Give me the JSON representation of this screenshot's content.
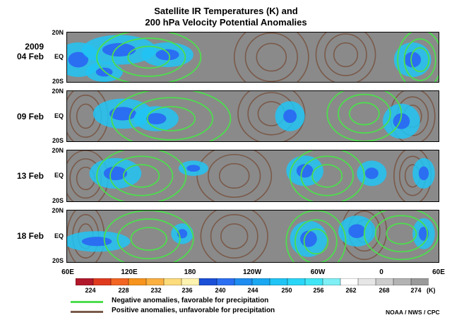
{
  "chart_data": {
    "type": "heatmap",
    "title": "Satellite IR Temperatures (K) and",
    "subtitle": "200 hPa Velocity Potential Anomalies",
    "panels": [
      {
        "year": "2009",
        "date": "04 Feb"
      },
      {
        "year": "",
        "date": "09 Feb"
      },
      {
        "year": "",
        "date": "13 Feb"
      },
      {
        "year": "",
        "date": "18 Feb"
      }
    ],
    "y_ticks": [
      "20N",
      "EQ",
      "20S"
    ],
    "x_ticks": [
      "60E",
      "120E",
      "180",
      "120W",
      "60W",
      "0",
      "60E"
    ],
    "x_tick_degrees_east": [
      60,
      120,
      180,
      240,
      300,
      360,
      420
    ],
    "colorbar": {
      "labels": [
        "224",
        "228",
        "232",
        "236",
        "240",
        "244",
        "250",
        "256",
        "262",
        "268",
        "274"
      ],
      "unit": "(K)",
      "colors": [
        "#b2182b",
        "#e03a1e",
        "#f26522",
        "#f7941d",
        "#fbb040",
        "#fddc7c",
        "#fff3b0",
        "#1b4fd8",
        "#2a6ef2",
        "#1e8cf0",
        "#1aa8f2",
        "#20c4f5",
        "#2ad6f7",
        "#40e6f5",
        "#7ff0f5",
        "#ffffff",
        "#e6e6e6",
        "#cccccc",
        "#b3b3b3",
        "#9a9a9a"
      ]
    },
    "legend": [
      {
        "label": "Negative anomalies, favorable for precipitation",
        "color": "#4ddd4d"
      },
      {
        "label": "Positive anomalies, unfavorable for precipitation",
        "color": "#7a5a4a"
      }
    ]
  },
  "credit": "NOAA / NWS / CPC"
}
